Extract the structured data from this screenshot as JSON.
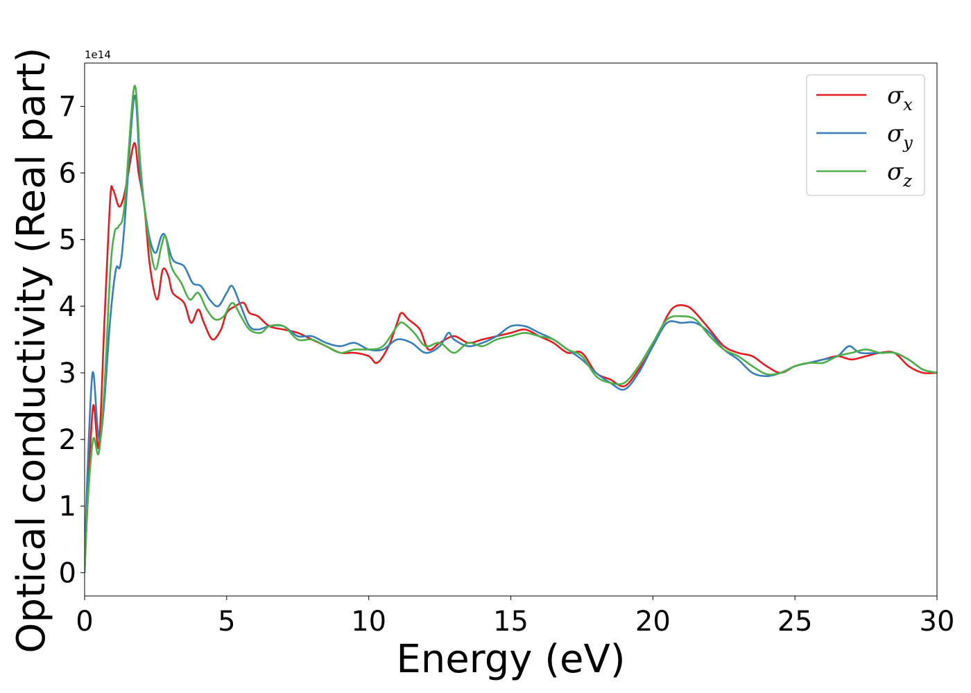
{
  "chart_data": {
    "type": "line",
    "title": "",
    "xlabel": "Energy (eV)",
    "ylabel": "Optical conductivity (Real part)",
    "y_offset_label": "1e14",
    "xlim": [
      0,
      30
    ],
    "ylim": [
      -0.35,
      7.65
    ],
    "x_ticks": [
      0,
      5,
      10,
      15,
      20,
      25,
      30
    ],
    "y_ticks": [
      0,
      1,
      2,
      3,
      4,
      5,
      6,
      7
    ],
    "grid": false,
    "legend_position": "top-right",
    "colors": {
      "x": "#e41a1c",
      "y": "#377eb8",
      "z": "#4daf4a"
    },
    "series": [
      {
        "name": "σx",
        "symbol": "σ",
        "subscript": "x",
        "color_key": "x",
        "points": [
          [
            0,
            0
          ],
          [
            0.1,
            1.0
          ],
          [
            0.3,
            2.5
          ],
          [
            0.5,
            1.9
          ],
          [
            0.7,
            3.8
          ],
          [
            0.9,
            5.6
          ],
          [
            1.0,
            5.75
          ],
          [
            1.2,
            5.5
          ],
          [
            1.35,
            5.6
          ],
          [
            1.5,
            5.9
          ],
          [
            1.75,
            6.45
          ],
          [
            1.9,
            6.0
          ],
          [
            2.1,
            5.5
          ],
          [
            2.3,
            4.6
          ],
          [
            2.55,
            4.1
          ],
          [
            2.75,
            4.55
          ],
          [
            2.95,
            4.45
          ],
          [
            3.1,
            4.2
          ],
          [
            3.5,
            4.05
          ],
          [
            3.75,
            3.75
          ],
          [
            4.0,
            3.95
          ],
          [
            4.2,
            3.75
          ],
          [
            4.5,
            3.5
          ],
          [
            4.8,
            3.65
          ],
          [
            5.0,
            3.9
          ],
          [
            5.3,
            4.0
          ],
          [
            5.6,
            4.05
          ],
          [
            5.8,
            3.9
          ],
          [
            6.1,
            3.85
          ],
          [
            6.5,
            3.7
          ],
          [
            7.0,
            3.65
          ],
          [
            7.5,
            3.6
          ],
          [
            8.0,
            3.5
          ],
          [
            8.5,
            3.4
          ],
          [
            9.0,
            3.3
          ],
          [
            9.5,
            3.3
          ],
          [
            10.0,
            3.25
          ],
          [
            10.3,
            3.15
          ],
          [
            10.7,
            3.4
          ],
          [
            11.0,
            3.75
          ],
          [
            11.15,
            3.9
          ],
          [
            11.4,
            3.8
          ],
          [
            11.8,
            3.65
          ],
          [
            12.1,
            3.35
          ],
          [
            12.5,
            3.45
          ],
          [
            13.0,
            3.55
          ],
          [
            13.5,
            3.45
          ],
          [
            14.0,
            3.5
          ],
          [
            14.5,
            3.55
          ],
          [
            15.0,
            3.6
          ],
          [
            15.5,
            3.65
          ],
          [
            16.0,
            3.55
          ],
          [
            16.5,
            3.45
          ],
          [
            17.0,
            3.3
          ],
          [
            17.5,
            3.3
          ],
          [
            18.0,
            3.0
          ],
          [
            18.5,
            2.9
          ],
          [
            19.0,
            2.8
          ],
          [
            19.5,
            3.05
          ],
          [
            20.0,
            3.4
          ],
          [
            20.5,
            3.85
          ],
          [
            20.8,
            4.0
          ],
          [
            21.2,
            4.0
          ],
          [
            21.5,
            3.9
          ],
          [
            22.0,
            3.65
          ],
          [
            22.5,
            3.4
          ],
          [
            23.0,
            3.3
          ],
          [
            23.5,
            3.25
          ],
          [
            24.0,
            3.1
          ],
          [
            24.5,
            3.0
          ],
          [
            25.0,
            3.1
          ],
          [
            25.5,
            3.15
          ],
          [
            26.0,
            3.2
          ],
          [
            26.5,
            3.25
          ],
          [
            27.0,
            3.2
          ],
          [
            27.5,
            3.25
          ],
          [
            28.0,
            3.3
          ],
          [
            28.5,
            3.3
          ],
          [
            29.0,
            3.1
          ],
          [
            29.5,
            3.0
          ],
          [
            30.0,
            3.0
          ]
        ]
      },
      {
        "name": "σy",
        "symbol": "σ",
        "subscript": "y",
        "color_key": "y",
        "points": [
          [
            0,
            0
          ],
          [
            0.1,
            1.5
          ],
          [
            0.28,
            3.0
          ],
          [
            0.45,
            2.2
          ],
          [
            0.55,
            2.0
          ],
          [
            0.7,
            2.6
          ],
          [
            0.9,
            3.8
          ],
          [
            1.1,
            4.55
          ],
          [
            1.25,
            4.6
          ],
          [
            1.4,
            5.2
          ],
          [
            1.75,
            7.15
          ],
          [
            1.95,
            6.0
          ],
          [
            2.1,
            5.5
          ],
          [
            2.3,
            5.0
          ],
          [
            2.5,
            4.8
          ],
          [
            2.7,
            5.05
          ],
          [
            2.85,
            5.05
          ],
          [
            3.1,
            4.7
          ],
          [
            3.5,
            4.6
          ],
          [
            3.8,
            4.35
          ],
          [
            4.1,
            4.3
          ],
          [
            4.4,
            4.1
          ],
          [
            4.7,
            4.0
          ],
          [
            5.0,
            4.2
          ],
          [
            5.2,
            4.3
          ],
          [
            5.5,
            4.0
          ],
          [
            5.8,
            3.7
          ],
          [
            6.1,
            3.65
          ],
          [
            6.5,
            3.7
          ],
          [
            7.0,
            3.7
          ],
          [
            7.5,
            3.55
          ],
          [
            8.0,
            3.55
          ],
          [
            8.5,
            3.45
          ],
          [
            9.0,
            3.4
          ],
          [
            9.5,
            3.45
          ],
          [
            10.0,
            3.35
          ],
          [
            10.5,
            3.35
          ],
          [
            11.0,
            3.5
          ],
          [
            11.5,
            3.45
          ],
          [
            12.0,
            3.3
          ],
          [
            12.5,
            3.4
          ],
          [
            12.8,
            3.6
          ],
          [
            13.0,
            3.5
          ],
          [
            13.5,
            3.4
          ],
          [
            14.0,
            3.45
          ],
          [
            14.5,
            3.55
          ],
          [
            15.0,
            3.7
          ],
          [
            15.5,
            3.7
          ],
          [
            16.0,
            3.6
          ],
          [
            16.5,
            3.5
          ],
          [
            17.0,
            3.35
          ],
          [
            17.5,
            3.2
          ],
          [
            18.0,
            3.0
          ],
          [
            18.5,
            2.85
          ],
          [
            19.0,
            2.75
          ],
          [
            19.5,
            3.0
          ],
          [
            20.0,
            3.4
          ],
          [
            20.5,
            3.75
          ],
          [
            21.0,
            3.75
          ],
          [
            21.5,
            3.75
          ],
          [
            22.0,
            3.6
          ],
          [
            22.5,
            3.35
          ],
          [
            23.0,
            3.2
          ],
          [
            23.5,
            3.0
          ],
          [
            24.0,
            2.95
          ],
          [
            24.5,
            3.0
          ],
          [
            25.0,
            3.1
          ],
          [
            25.5,
            3.15
          ],
          [
            26.0,
            3.2
          ],
          [
            26.5,
            3.25
          ],
          [
            26.9,
            3.4
          ],
          [
            27.3,
            3.3
          ],
          [
            28.0,
            3.3
          ],
          [
            28.5,
            3.3
          ],
          [
            29.0,
            3.2
          ],
          [
            29.5,
            3.05
          ],
          [
            30.0,
            3.0
          ]
        ]
      },
      {
        "name": "σz",
        "symbol": "σ",
        "subscript": "z",
        "color_key": "z",
        "points": [
          [
            0,
            0
          ],
          [
            0.1,
            1.0
          ],
          [
            0.3,
            2.0
          ],
          [
            0.5,
            1.8
          ],
          [
            0.7,
            2.8
          ],
          [
            0.9,
            4.5
          ],
          [
            1.05,
            5.1
          ],
          [
            1.2,
            5.2
          ],
          [
            1.4,
            5.5
          ],
          [
            1.75,
            7.3
          ],
          [
            1.95,
            6.2
          ],
          [
            2.1,
            5.5
          ],
          [
            2.3,
            4.9
          ],
          [
            2.5,
            4.55
          ],
          [
            2.7,
            4.9
          ],
          [
            2.85,
            5.05
          ],
          [
            3.05,
            4.6
          ],
          [
            3.4,
            4.35
          ],
          [
            3.7,
            4.1
          ],
          [
            4.0,
            4.2
          ],
          [
            4.3,
            3.95
          ],
          [
            4.6,
            3.8
          ],
          [
            4.9,
            3.85
          ],
          [
            5.2,
            4.05
          ],
          [
            5.5,
            3.85
          ],
          [
            5.8,
            3.65
          ],
          [
            6.2,
            3.6
          ],
          [
            6.5,
            3.7
          ],
          [
            7.0,
            3.7
          ],
          [
            7.5,
            3.5
          ],
          [
            8.0,
            3.5
          ],
          [
            8.5,
            3.4
          ],
          [
            9.0,
            3.3
          ],
          [
            9.5,
            3.35
          ],
          [
            10.0,
            3.35
          ],
          [
            10.5,
            3.4
          ],
          [
            11.0,
            3.7
          ],
          [
            11.2,
            3.75
          ],
          [
            11.6,
            3.6
          ],
          [
            12.0,
            3.4
          ],
          [
            12.5,
            3.45
          ],
          [
            13.0,
            3.3
          ],
          [
            13.5,
            3.45
          ],
          [
            14.0,
            3.4
          ],
          [
            14.5,
            3.5
          ],
          [
            15.0,
            3.55
          ],
          [
            15.5,
            3.6
          ],
          [
            16.0,
            3.55
          ],
          [
            16.5,
            3.5
          ],
          [
            17.0,
            3.35
          ],
          [
            17.5,
            3.25
          ],
          [
            18.0,
            2.95
          ],
          [
            18.5,
            2.85
          ],
          [
            19.0,
            2.85
          ],
          [
            19.5,
            3.1
          ],
          [
            20.0,
            3.45
          ],
          [
            20.5,
            3.8
          ],
          [
            21.0,
            3.85
          ],
          [
            21.5,
            3.8
          ],
          [
            22.0,
            3.55
          ],
          [
            22.5,
            3.35
          ],
          [
            23.0,
            3.25
          ],
          [
            23.5,
            3.1
          ],
          [
            24.0,
            2.98
          ],
          [
            24.5,
            3.0
          ],
          [
            25.0,
            3.1
          ],
          [
            25.5,
            3.15
          ],
          [
            26.0,
            3.15
          ],
          [
            26.5,
            3.25
          ],
          [
            27.0,
            3.3
          ],
          [
            27.5,
            3.35
          ],
          [
            28.0,
            3.3
          ],
          [
            28.5,
            3.3
          ],
          [
            29.0,
            3.2
          ],
          [
            29.5,
            3.05
          ],
          [
            30.0,
            3.0
          ]
        ]
      }
    ]
  }
}
